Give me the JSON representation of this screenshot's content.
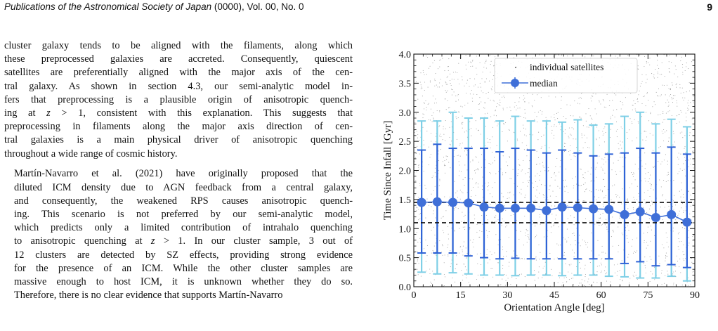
{
  "header": {
    "journal": "Publications of the Astronomical Society of Japan",
    "volume": " (0000), Vol. 00, No. 0",
    "page_number": "9"
  },
  "paragraph1": [
    "cluster galaxy tends to be aligned with the filaments, along which",
    "these preprocessed galaxies are accreted. Consequently, quiescent",
    "satellites are preferentially aligned with the major axis of the cen-",
    "tral galaxy. As shown in section 4.3, our semi-analytic model in-",
    "fers that preprocessing is a plausible origin of anisotropic quench-",
    "ing at z > 1, consistent with this explanation. This suggests that",
    "preprocessing in filaments along the major axis direction of cen-",
    "tral galaxies is a main physical driver of anisotropic quenching",
    "throughout a wide range of cosmic history."
  ],
  "paragraph2": [
    "Martín-Navarro et al. (2021) have originally proposed that the",
    "diluted ICM density due to AGN feedback from a central galaxy,",
    "and consequently, the weakened RPS causes anisotropic quench-",
    "ing. This scenario is not preferred by our semi-analytic model,",
    "which predicts only a limited contribution of intrahalo quenching",
    "to anisotropic quenching at z > 1. In our cluster sample, 3 out of",
    "12 clusters are detected by SZ effects, providing strong evidence",
    "for the presence of an ICM. While the other cluster samples are",
    "massive enough to host ICM, it is unknown whether they do so.",
    "Therefore, there is no clear evidence that supports Martín-Navarro"
  ],
  "chart_data": {
    "type": "scatter",
    "xlabel": "Orientation Angle [deg]",
    "ylabel": "Time Since Infall [Gyr]",
    "xlim": [
      0,
      90
    ],
    "ylim": [
      0,
      4.0
    ],
    "xticks": [
      "0",
      "15",
      "30",
      "45",
      "60",
      "75",
      "90"
    ],
    "yticks": [
      "0.0",
      "0.5",
      "1.0",
      "1.5",
      "2.0",
      "2.5",
      "3.0",
      "3.5",
      "4.0"
    ],
    "grid": false,
    "legend_position": "top-center",
    "legend": [
      "individual satellites",
      "median"
    ],
    "colors": {
      "median": "#3f6fd8",
      "inner_error": "#2f62d6",
      "outer_error": "#7ecfe6",
      "scatter": "#7a7a7a",
      "reference_lines": "#111111"
    },
    "reference_lines_y": [
      1.45,
      1.1
    ],
    "series": [
      {
        "name": "median",
        "x": [
          2.5,
          7.5,
          12.5,
          17.5,
          22.5,
          27.5,
          32.5,
          37.5,
          42.5,
          47.5,
          52.5,
          57.5,
          62.5,
          67.5,
          72.5,
          77.5,
          82.5,
          87.5
        ],
        "y": [
          1.45,
          1.46,
          1.45,
          1.44,
          1.37,
          1.35,
          1.35,
          1.35,
          1.31,
          1.37,
          1.36,
          1.34,
          1.33,
          1.24,
          1.29,
          1.19,
          1.24,
          1.11
        ],
        "inner_low": [
          0.58,
          0.58,
          0.58,
          0.53,
          0.5,
          0.48,
          0.49,
          0.48,
          0.48,
          0.48,
          0.48,
          0.48,
          0.48,
          0.4,
          0.43,
          0.36,
          0.38,
          0.33
        ],
        "inner_high": [
          2.35,
          2.45,
          2.38,
          2.38,
          2.38,
          2.32,
          2.38,
          2.35,
          2.3,
          2.35,
          2.3,
          2.25,
          2.28,
          2.3,
          2.38,
          2.3,
          2.4,
          2.28
        ],
        "outer_low": [
          0.25,
          0.22,
          0.24,
          0.22,
          0.2,
          0.2,
          0.19,
          0.2,
          0.2,
          0.19,
          0.2,
          0.2,
          0.18,
          0.17,
          0.15,
          0.15,
          0.18,
          0.1
        ],
        "outer_high": [
          2.85,
          2.85,
          3.0,
          2.9,
          2.9,
          2.85,
          2.93,
          2.85,
          2.85,
          2.83,
          2.87,
          2.78,
          2.8,
          2.93,
          3.0,
          2.8,
          2.88,
          2.75
        ]
      }
    ]
  }
}
